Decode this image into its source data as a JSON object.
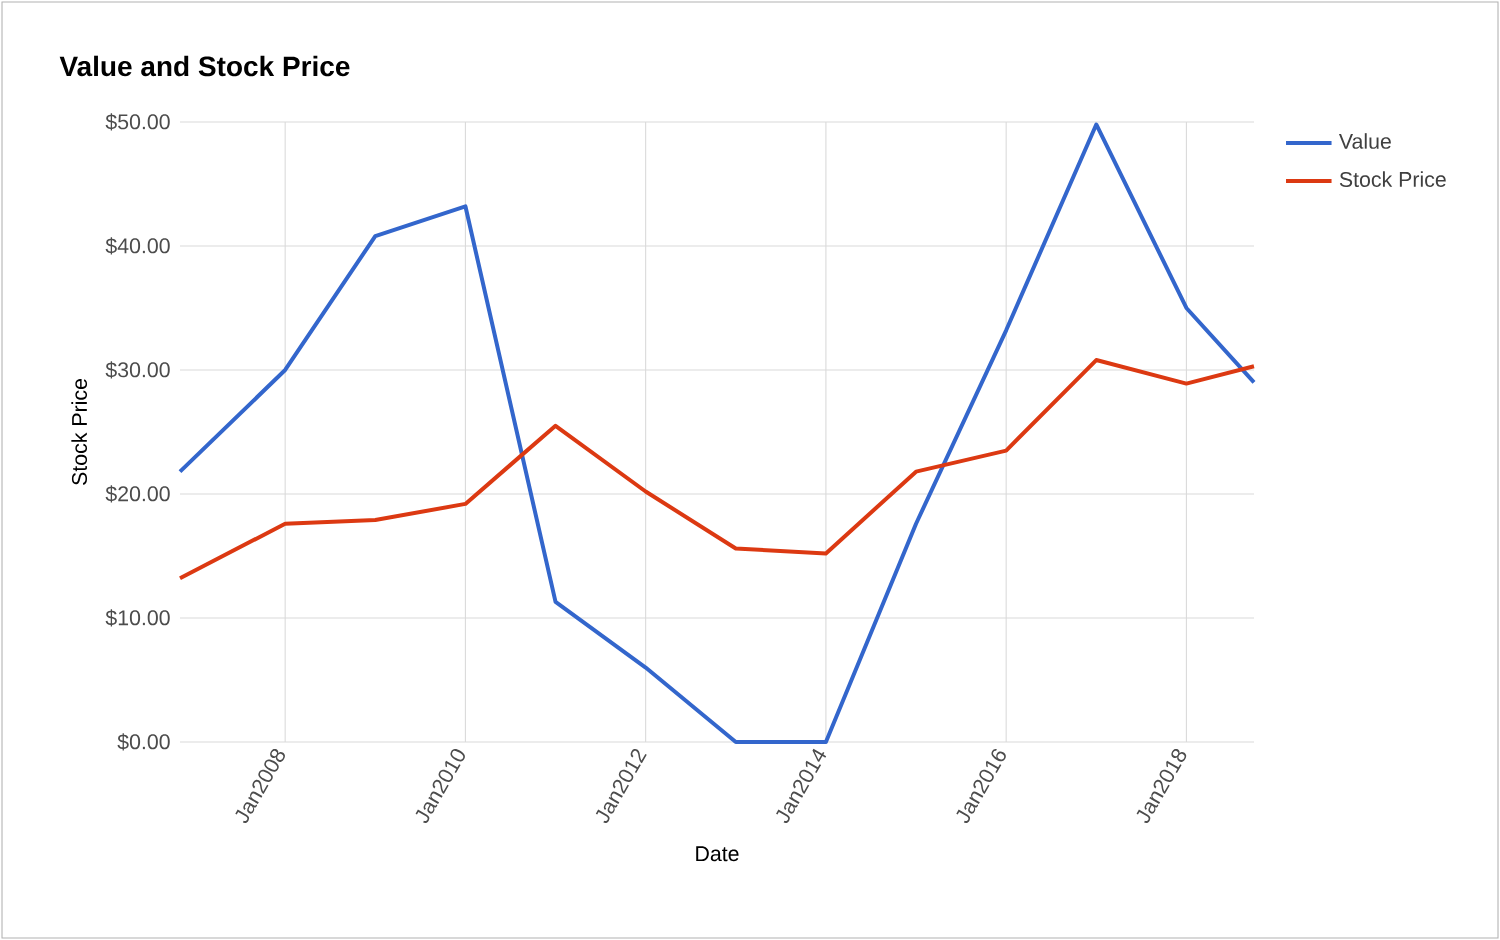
{
  "chart_data": {
    "type": "line",
    "title": "Value and Stock Price",
    "xlabel": "Date",
    "ylabel": "Stock Price",
    "x": [
      "2006-11",
      "2008-01",
      "2009-01",
      "2010-01",
      "2011-01",
      "2012-01",
      "2013-01",
      "2014-01",
      "2015-01",
      "2016-01",
      "2017-01",
      "2018-01",
      "2018-10"
    ],
    "series": [
      {
        "name": "Value",
        "color": "#3366cc",
        "values": [
          21.8,
          30.0,
          40.8,
          43.2,
          11.3,
          6.0,
          0,
          0,
          17.6,
          33.2,
          49.8,
          35.0,
          29.0
        ]
      },
      {
        "name": "Stock Price",
        "color": "#dc3912",
        "values": [
          13.2,
          17.6,
          17.9,
          19.2,
          25.5,
          20.2,
          15.6,
          15.2,
          21.8,
          23.5,
          30.8,
          28.9,
          30.3
        ]
      }
    ],
    "xlim": [
      "2006-11",
      "2018-10"
    ],
    "xticks": [
      {
        "value": "2008-01",
        "label": "Jan2008"
      },
      {
        "value": "2010-01",
        "label": "Jan2010"
      },
      {
        "value": "2012-01",
        "label": "Jan2012"
      },
      {
        "value": "2014-01",
        "label": "Jan2014"
      },
      {
        "value": "2016-01",
        "label": "Jan2016"
      },
      {
        "value": "2018-01",
        "label": "Jan2018"
      }
    ],
    "ylim": [
      0,
      50
    ],
    "yticks": [
      {
        "value": 0,
        "label": "$0.00"
      },
      {
        "value": 10,
        "label": "$10.00"
      },
      {
        "value": 20,
        "label": "$20.00"
      },
      {
        "value": 30,
        "label": "$30.00"
      },
      {
        "value": 40,
        "label": "$40.00"
      },
      {
        "value": 50,
        "label": "$50.00"
      }
    ],
    "grid": true,
    "legend": "top right",
    "marker": "none",
    "line_style": "solid"
  }
}
